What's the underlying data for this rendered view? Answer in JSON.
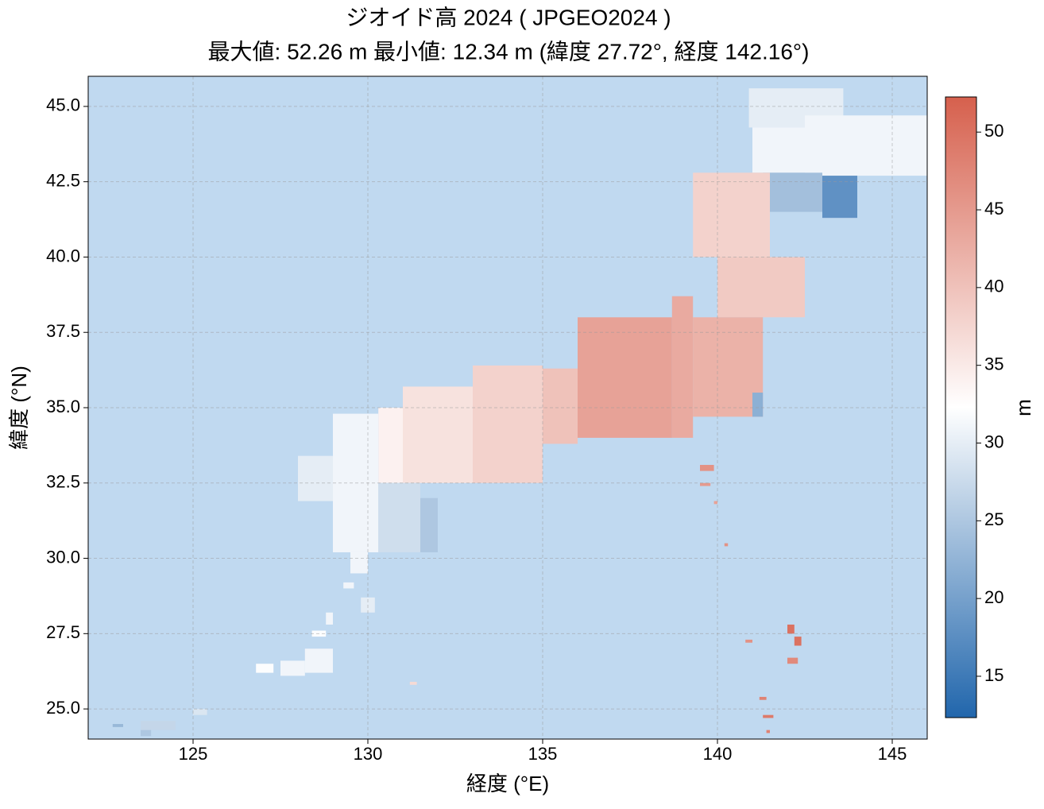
{
  "chart_data": {
    "type": "heatmap",
    "title": "ジオイド高 2024 ( JPGEO2024 )",
    "subtitle": "最大値: 52.26 m  最小値: 12.34 m  (緯度 27.72°, 経度 142.16°)",
    "xlabel": "経度 (°E)",
    "ylabel": "緯度 (°N)",
    "xlim": [
      122,
      146
    ],
    "ylim": [
      24,
      46
    ],
    "xticks": [
      125,
      130,
      135,
      140,
      145
    ],
    "yticks": [
      {
        "value": 25,
        "label": "25.0"
      },
      {
        "value": 27.5,
        "label": "27.5"
      },
      {
        "value": 30,
        "label": "30.0"
      },
      {
        "value": 32.5,
        "label": "32.5"
      },
      {
        "value": 35,
        "label": "35.0"
      },
      {
        "value": 37.5,
        "label": "37.5"
      },
      {
        "value": 40,
        "label": "40.0"
      },
      {
        "value": 42.5,
        "label": "42.5"
      },
      {
        "value": 45,
        "label": "45.0"
      }
    ],
    "grid": true,
    "background_color": "#c0d9f0",
    "colormap": [
      "#2166ac",
      "#ffffff",
      "#d6604d"
    ],
    "clim": [
      12.34,
      52.26
    ],
    "colorbar_label": "m",
    "colorbar_ticks": [
      15,
      20,
      25,
      30,
      35,
      40,
      45,
      50
    ],
    "cells": {
      "x0": [
        140.9,
        141,
        142.5,
        141.3,
        143,
        139.3,
        140,
        139.3,
        141,
        138.7,
        136,
        135,
        133,
        131,
        130.3,
        129,
        128,
        130.3,
        131.5,
        139.5,
        139.5,
        139.9,
        140.2,
        129.8,
        129.5,
        129.3,
        128.8,
        128.4,
        128.2,
        127.5,
        126.8,
        125,
        123.5,
        122.7,
        123.5,
        131.2,
        142,
        142.2,
        142,
        140.8,
        141.3,
        141.2,
        141.4
      ],
      "x1": [
        143.6,
        142.5,
        146,
        143,
        144,
        141.5,
        142.5,
        141.3,
        141.3,
        139.3,
        138.7,
        136,
        135,
        133,
        131,
        130.3,
        129,
        131.5,
        132,
        139.9,
        139.8,
        140,
        140.3,
        130.2,
        130,
        129.6,
        129,
        128.8,
        129,
        128.2,
        127.3,
        125.4,
        124.5,
        123,
        123.8,
        131.4,
        142.2,
        142.4,
        142.3,
        141,
        141.6,
        141.4,
        141.5
      ],
      "y0": [
        44.3,
        42.8,
        42.7,
        41.5,
        41.3,
        40,
        38,
        34.7,
        34.7,
        34,
        34,
        33.8,
        32.5,
        32.5,
        32.5,
        30.2,
        31.9,
        30.2,
        30.2,
        32.9,
        32.4,
        31.8,
        30.4,
        28.2,
        29.5,
        29,
        27.8,
        27.4,
        26.2,
        26.1,
        26.2,
        24.8,
        24.3,
        24.4,
        24.1,
        25.8,
        27.5,
        27.1,
        26.5,
        27.2,
        24.7,
        25.3,
        24.2
      ],
      "y1": [
        45.6,
        44.3,
        44.7,
        42.8,
        42.7,
        42.8,
        40,
        38,
        35.5,
        38.7,
        38,
        36.3,
        36.4,
        35.7,
        35,
        34.8,
        33.4,
        32.5,
        32,
        33.1,
        32.5,
        31.9,
        30.5,
        28.7,
        30.2,
        29.2,
        28.2,
        27.6,
        27,
        26.6,
        26.5,
        25,
        24.6,
        24.5,
        24.3,
        25.9,
        27.8,
        27.4,
        26.7,
        27.3,
        24.8,
        25.4,
        24.3
      ],
      "values": [
        30,
        31,
        31,
        24,
        18,
        38,
        39,
        42,
        22,
        43,
        44,
        40,
        38,
        36,
        34,
        31,
        30,
        28,
        25,
        46,
        45,
        44,
        46,
        30,
        31,
        31,
        31,
        32,
        31,
        31,
        32,
        29,
        27,
        23,
        25,
        37,
        50,
        50,
        47,
        46,
        49,
        48,
        48
      ]
    }
  }
}
